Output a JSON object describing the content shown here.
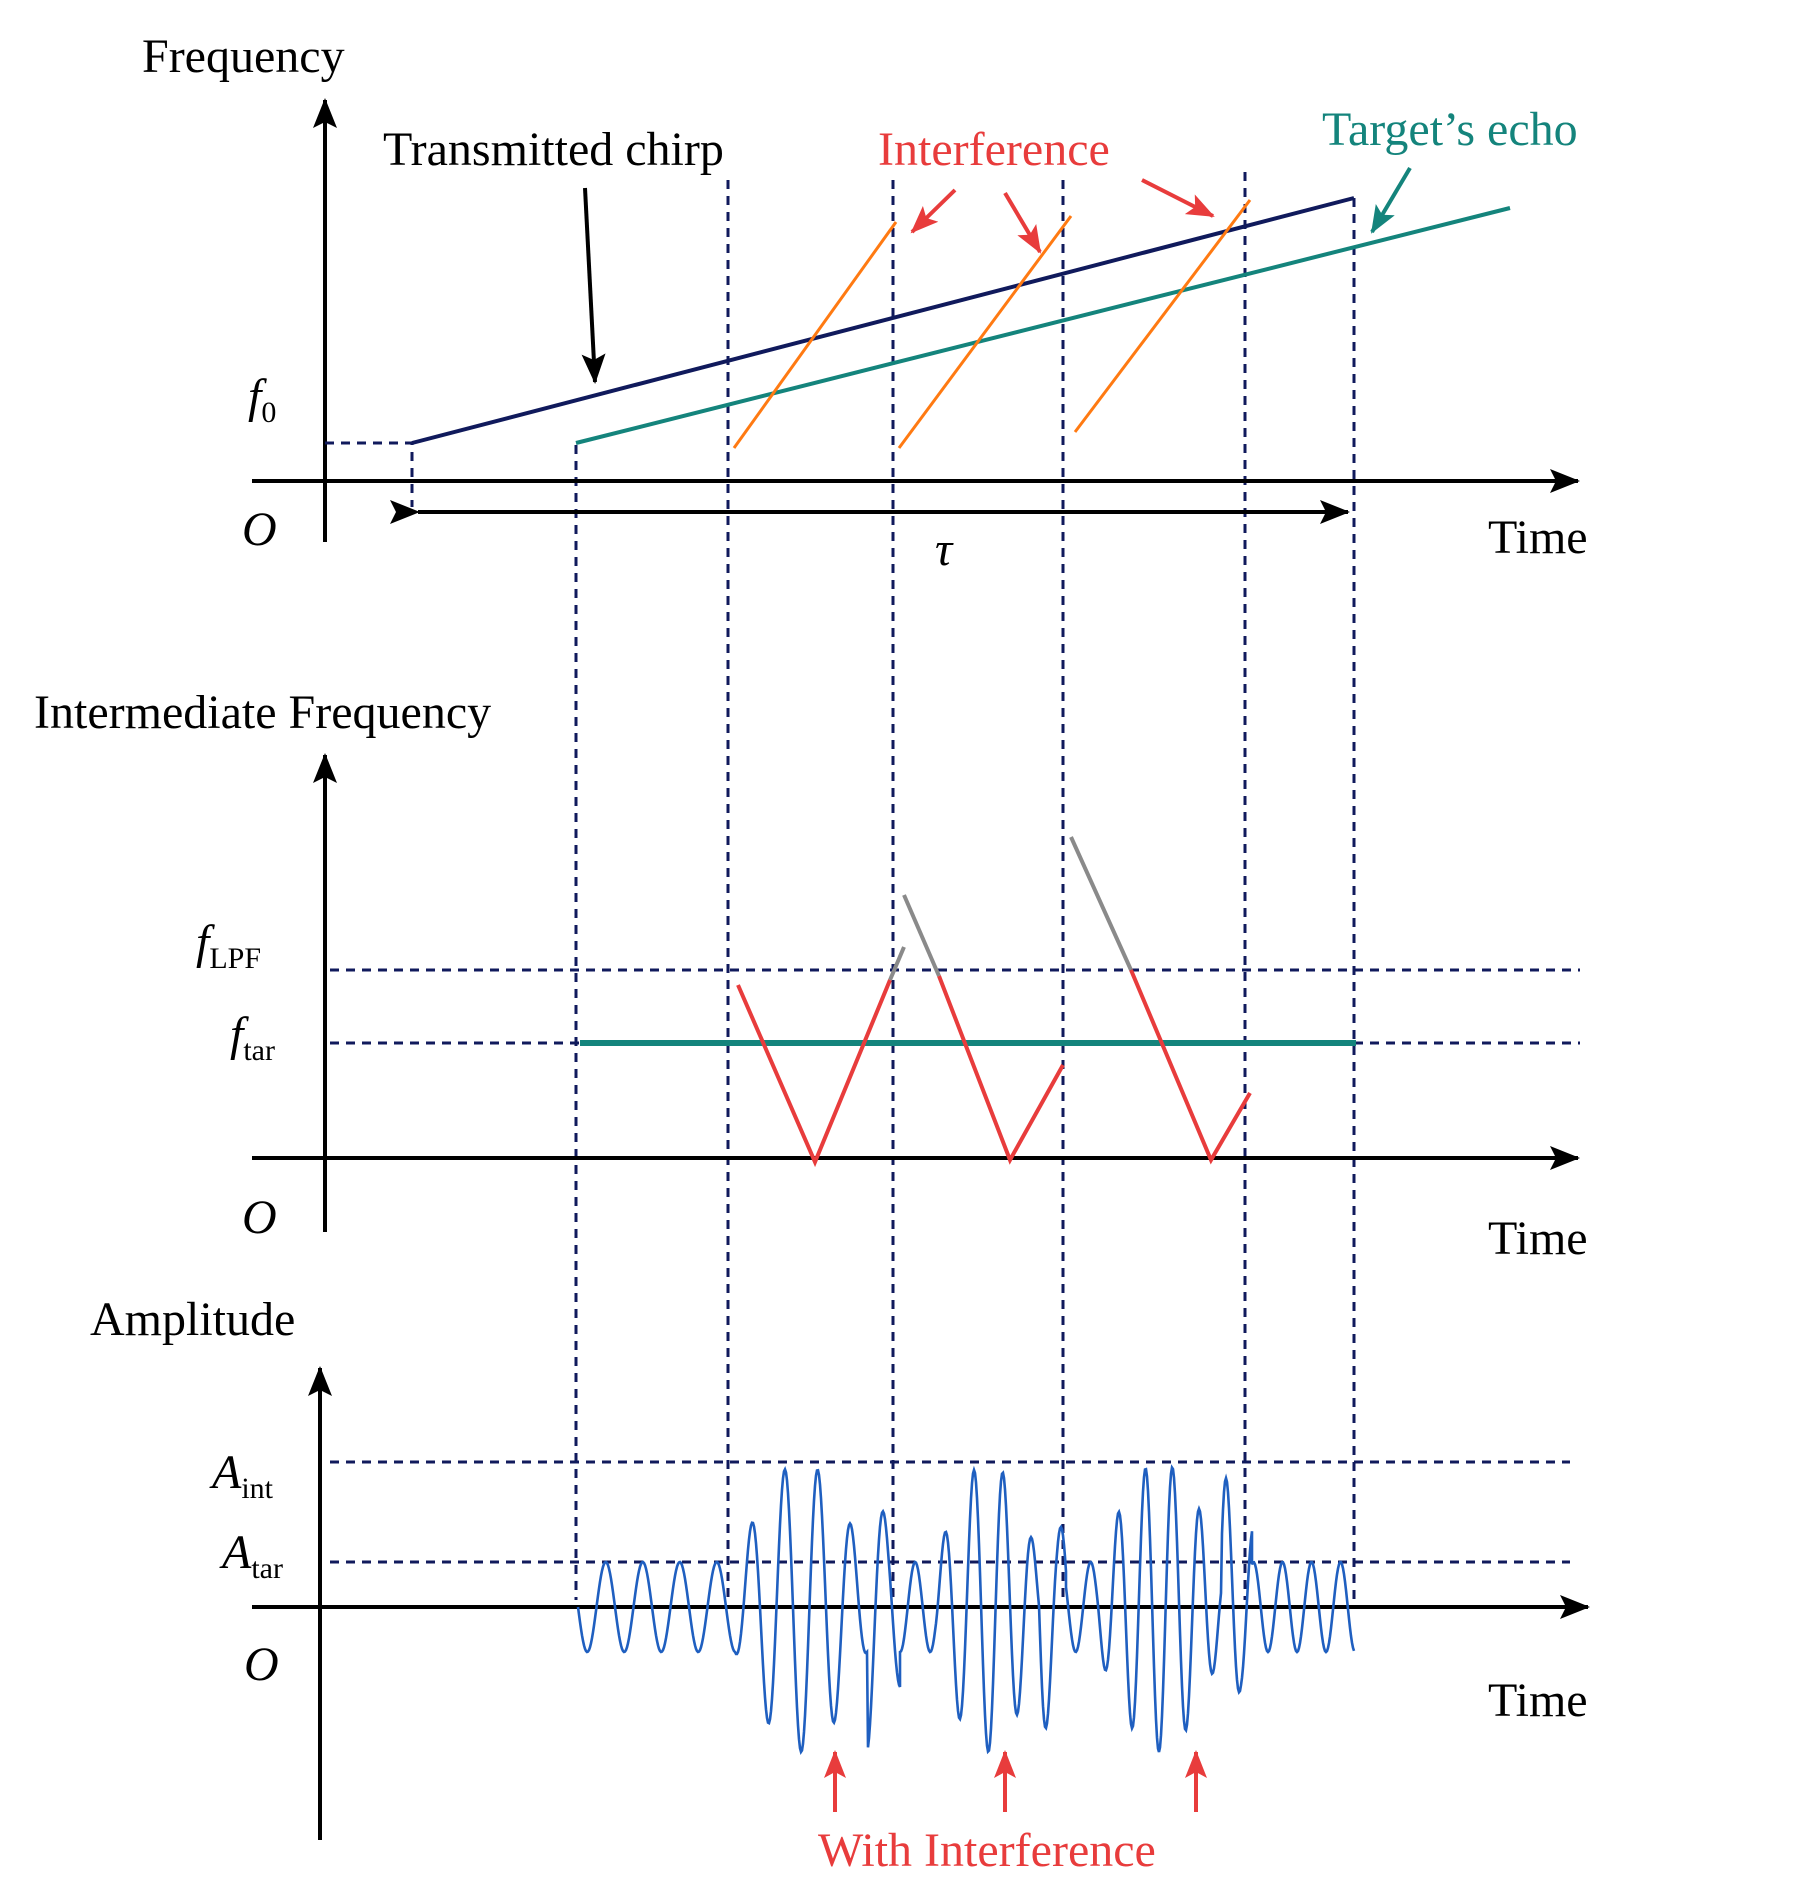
{
  "panels": {
    "frequency": {
      "y_label": "Frequency",
      "origin": "O",
      "x_label": "Time",
      "f0_main": "f",
      "f0_sub": "0",
      "tau": "τ",
      "transmitted_label": "Transmitted chirp",
      "interference_label": "Interference",
      "echo_label": "Target’s echo"
    },
    "intermediate": {
      "y_label": "Intermediate Frequency",
      "origin": "O",
      "x_label": "Time",
      "flpf_main": "f",
      "flpf_sub": "LPF",
      "ftar_main": "f",
      "ftar_sub": "tar"
    },
    "amplitude": {
      "y_label": "Amplitude",
      "origin": "O",
      "x_label": "Time",
      "aint_main": "A",
      "aint_sub": "int",
      "atar_main": "A",
      "atar_sub": "tar",
      "with_interference_label": "With Interference"
    }
  },
  "colors": {
    "navy": "#101a5c",
    "teal": "#14847c",
    "orange": "#ff7a12",
    "red": "#e83c3c",
    "gray": "#8a8a8a",
    "blue": "#1f5fc0",
    "black": "#000000"
  },
  "icons": {
    "axis_arrow": "arrow-head-icon",
    "pointer": "pointer-arrow-icon"
  }
}
